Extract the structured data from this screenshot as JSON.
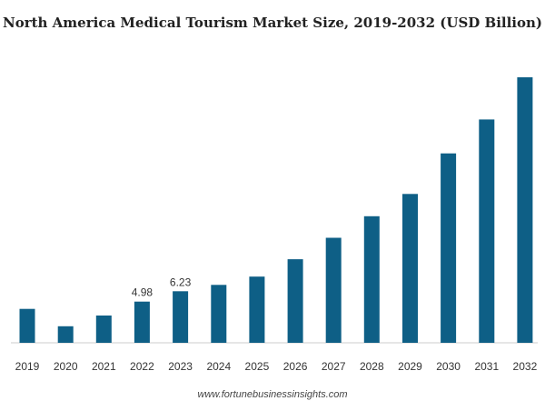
{
  "chart_data": {
    "type": "bar",
    "title": "North America Medical Tourism Market Size, 2019-2032 (USD Billion)",
    "categories": [
      "2019",
      "2020",
      "2021",
      "2022",
      "2023",
      "2024",
      "2025",
      "2026",
      "2027",
      "2028",
      "2029",
      "2030",
      "2031",
      "2032"
    ],
    "values": [
      4.1,
      2.0,
      3.3,
      4.98,
      6.23,
      7.0,
      8.0,
      10.1,
      12.7,
      15.3,
      18.0,
      22.9,
      27.0,
      32.1
    ],
    "data_labels": {
      "2022": "4.98",
      "2023": "6.23"
    },
    "xlabel": "",
    "ylabel": "",
    "ylim": [
      0,
      32.1
    ],
    "grid": false,
    "legend": "none",
    "bar_color": "#0e5f86"
  },
  "source": "www.fortunebusinessinsights.com"
}
